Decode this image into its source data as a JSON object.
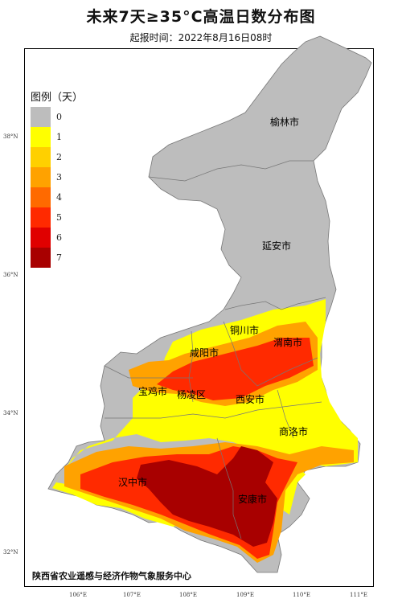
{
  "title": "未来7天≥35°C高温日数分布图",
  "subtitle": "起报时间：2022年8月16日08时",
  "legend": {
    "title": "图例（天）",
    "items": [
      {
        "label": "0",
        "color": "#bdbdbd"
      },
      {
        "label": "1",
        "color": "#ffff00"
      },
      {
        "label": "2",
        "color": "#ffd000"
      },
      {
        "label": "3",
        "color": "#ffa200"
      },
      {
        "label": "4",
        "color": "#ff6a00"
      },
      {
        "label": "5",
        "color": "#ff2a00"
      },
      {
        "label": "6",
        "color": "#e00000"
      },
      {
        "label": "7",
        "color": "#a80000"
      }
    ]
  },
  "cities": [
    {
      "name": "榆林市"
    },
    {
      "name": "延安市"
    },
    {
      "name": "铜川市"
    },
    {
      "name": "渭南市"
    },
    {
      "name": "咸阳市"
    },
    {
      "name": "宝鸡市"
    },
    {
      "name": "杨凌区"
    },
    {
      "name": "西安市"
    },
    {
      "name": "商洛市"
    },
    {
      "name": "汉中市"
    },
    {
      "name": "安康市"
    }
  ],
  "latitude_ticks": [
    "38°N",
    "36°N",
    "34°N",
    "32°N"
  ],
  "longitude_ticks": [
    "106°E",
    "107°E",
    "108°E",
    "109°E",
    "110°E",
    "111°E"
  ],
  "footer": "陕西省农业遥感与经济作物气象服务中心"
}
